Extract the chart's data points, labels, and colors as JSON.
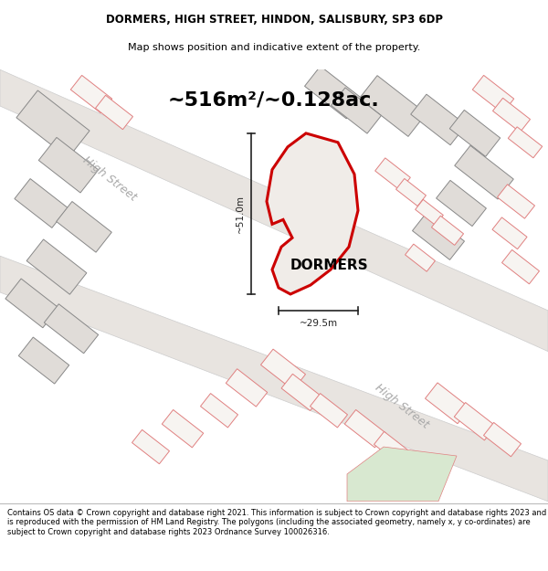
{
  "title_line1": "DORMERS, HIGH STREET, HINDON, SALISBURY, SP3 6DP",
  "title_line2": "Map shows position and indicative extent of the property.",
  "area_text": "~516m²/~0.128ac.",
  "property_label": "DORMERS",
  "dim_vertical": "~51.0m",
  "dim_horizontal": "~29.5m",
  "footer_text": "Contains OS data © Crown copyright and database right 2021. This information is subject to Crown copyright and database rights 2023 and is reproduced with the permission of HM Land Registry. The polygons (including the associated geometry, namely x, y co-ordinates) are subject to Crown copyright and database rights 2023 Ordnance Survey 100026316.",
  "map_bg": "#f7f4f1",
  "road_fill": "#e8e4e0",
  "road_edge": "#cccccc",
  "bld_fill_gray": "#e0dcd8",
  "bld_edge_gray": "#888888",
  "bld_fill_pink": "#f7f4f1",
  "bld_edge_pink": "#e08080",
  "prop_fill": "#f0ece8",
  "prop_edge": "#cc0000",
  "street_color": "#aaaaaa",
  "dim_color": "#222222",
  "text_color": "#000000",
  "green_fill": "#d8e8d0"
}
